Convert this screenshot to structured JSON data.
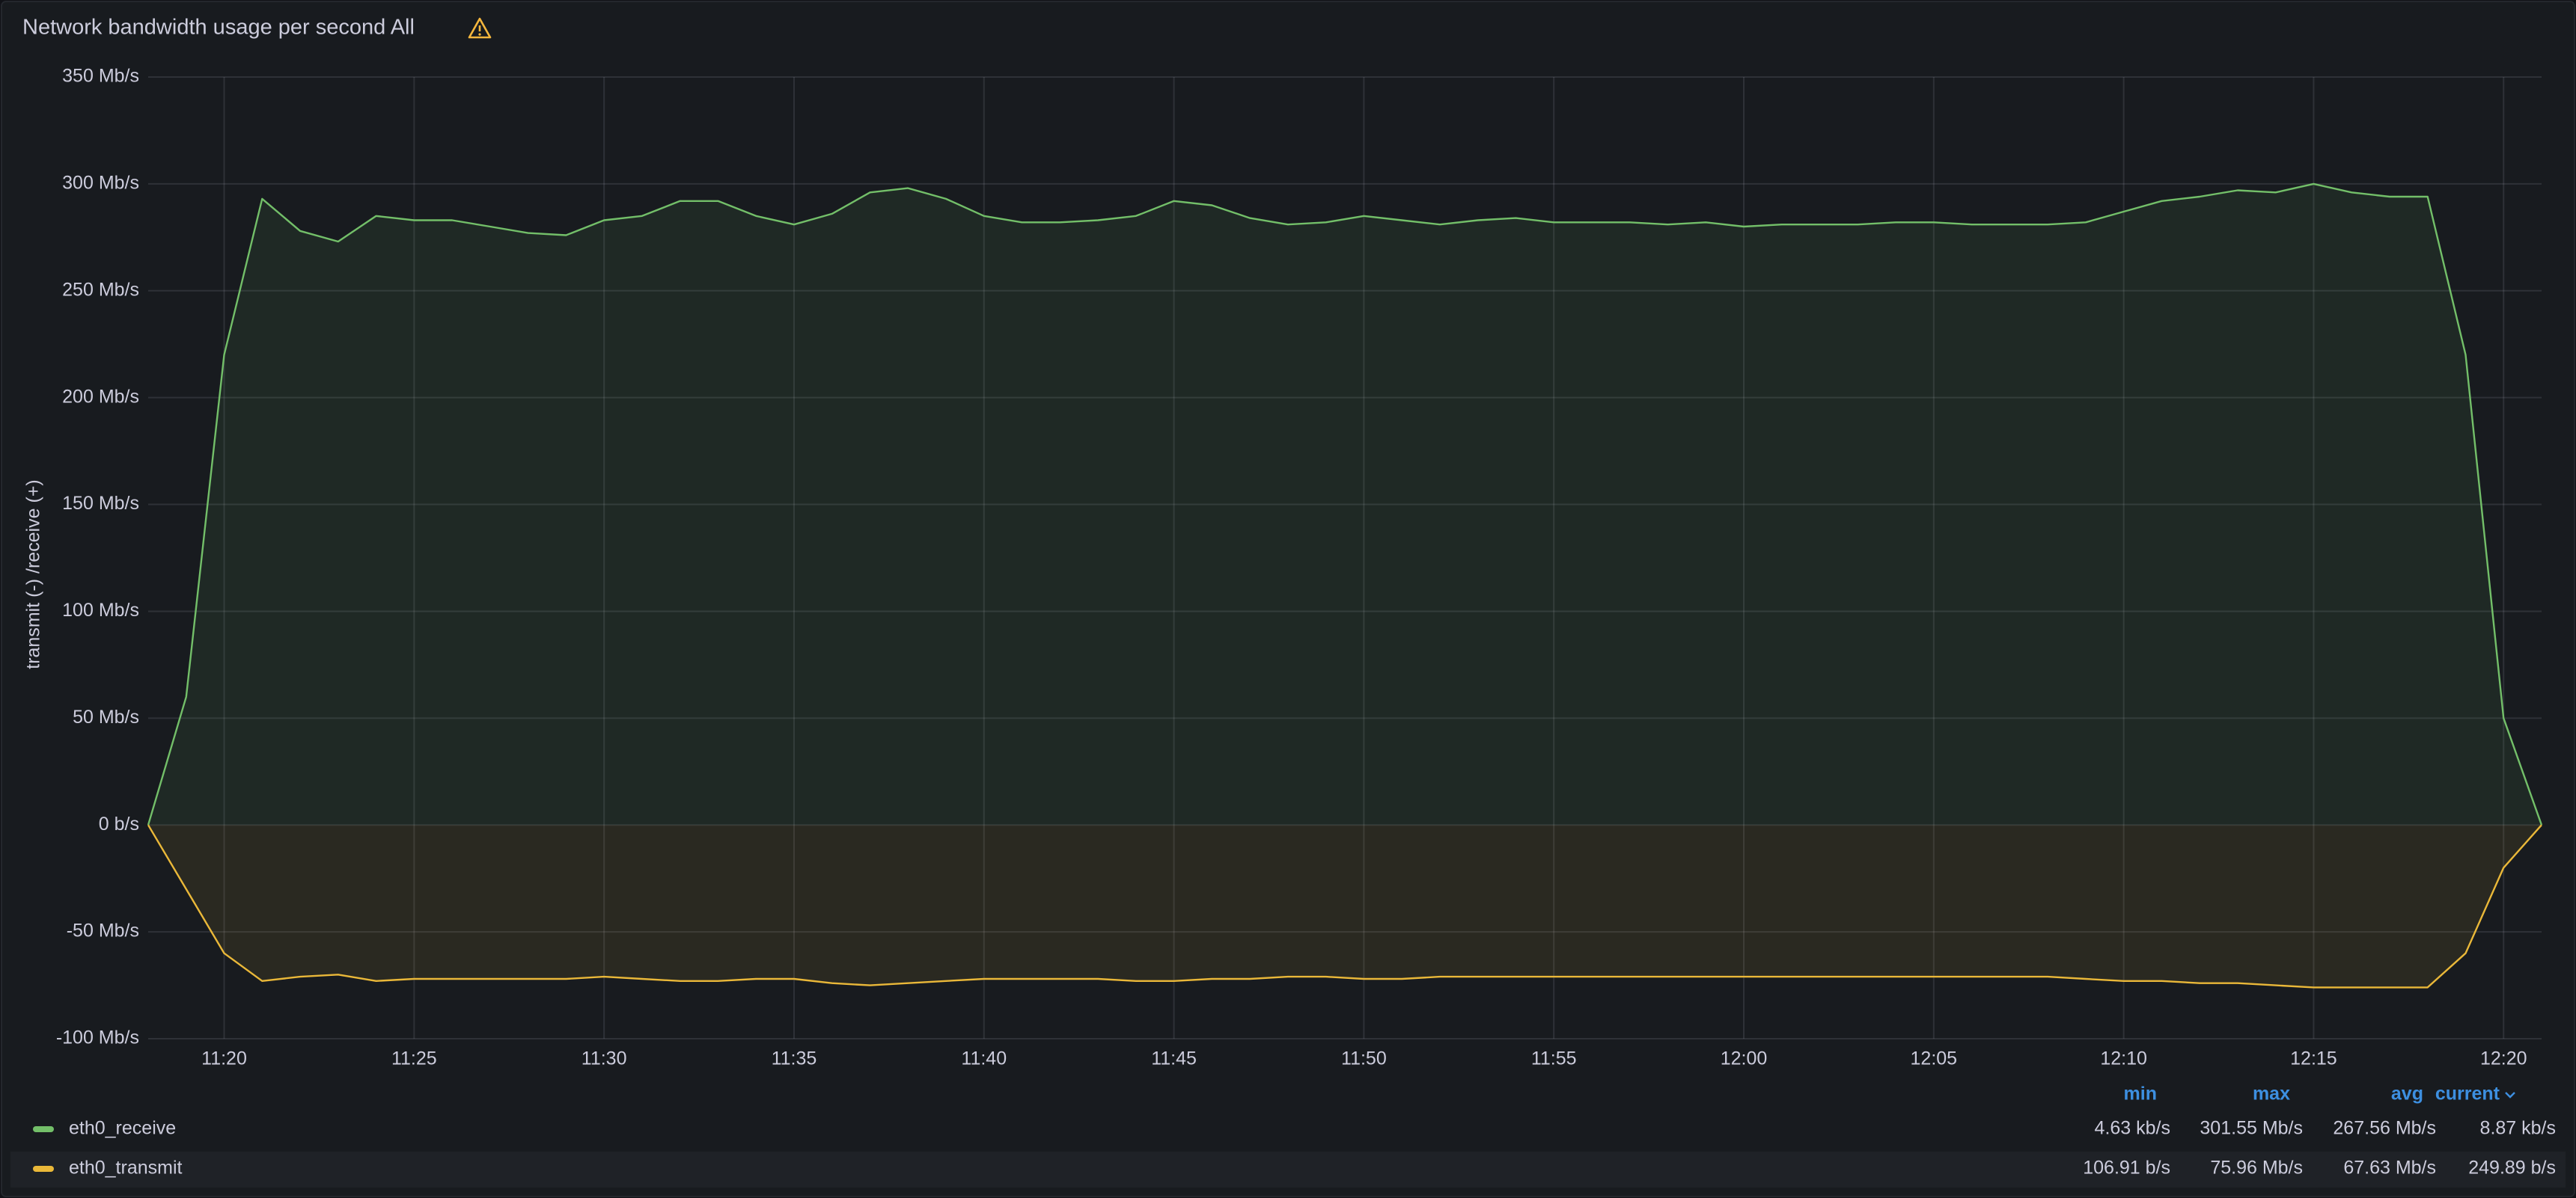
{
  "chart_data": {
    "type": "line",
    "title": "Network bandwidth usage per second All",
    "ylabel": "transmit  (-)  /receive  (+)",
    "ylim": [
      -100,
      350
    ],
    "yticks": [
      {
        "value": -100,
        "label": "-100 Mb/s"
      },
      {
        "value": -50,
        "label": "-50 Mb/s"
      },
      {
        "value": 0,
        "label": "0 b/s"
      },
      {
        "value": 50,
        "label": "50 Mb/s"
      },
      {
        "value": 100,
        "label": "100 Mb/s"
      },
      {
        "value": 150,
        "label": "150 Mb/s"
      },
      {
        "value": 200,
        "label": "200 Mb/s"
      },
      {
        "value": 250,
        "label": "250 Mb/s"
      },
      {
        "value": 300,
        "label": "300 Mb/s"
      },
      {
        "value": 350,
        "label": "350 Mb/s"
      }
    ],
    "xlim": [
      "11:18",
      "12:21"
    ],
    "xticks": [
      "11:20",
      "11:25",
      "11:30",
      "11:35",
      "11:40",
      "11:45",
      "11:50",
      "11:55",
      "12:00",
      "12:05",
      "12:10",
      "12:15",
      "12:20"
    ],
    "grid": true,
    "x": [
      "11:18",
      "11:19",
      "11:20",
      "11:21",
      "11:22",
      "11:23",
      "11:24",
      "11:25",
      "11:26",
      "11:27",
      "11:28",
      "11:29",
      "11:30",
      "11:31",
      "11:32",
      "11:33",
      "11:34",
      "11:35",
      "11:36",
      "11:37",
      "11:38",
      "11:39",
      "11:40",
      "11:41",
      "11:42",
      "11:43",
      "11:44",
      "11:45",
      "11:46",
      "11:47",
      "11:48",
      "11:49",
      "11:50",
      "11:51",
      "11:52",
      "11:53",
      "11:54",
      "11:55",
      "11:56",
      "11:57",
      "11:58",
      "11:59",
      "12:00",
      "12:01",
      "12:02",
      "12:03",
      "12:04",
      "12:05",
      "12:06",
      "12:07",
      "12:08",
      "12:09",
      "12:10",
      "12:11",
      "12:12",
      "12:13",
      "12:14",
      "12:15",
      "12:16",
      "12:17",
      "12:18",
      "12:19",
      "12:20",
      "12:21"
    ],
    "legend_columns": [
      "min",
      "max",
      "avg",
      "current"
    ],
    "series": [
      {
        "name": "eth0_receive",
        "color": "#73bf69",
        "values": [
          0,
          60,
          220,
          293,
          278,
          273,
          285,
          283,
          283,
          280,
          277,
          276,
          283,
          285,
          292,
          292,
          285,
          281,
          286,
          296,
          298,
          293,
          285,
          282,
          282,
          283,
          285,
          292,
          290,
          284,
          281,
          282,
          285,
          283,
          281,
          283,
          284,
          282,
          282,
          282,
          281,
          282,
          280,
          281,
          281,
          281,
          282,
          282,
          281,
          281,
          281,
          282,
          287,
          292,
          294,
          297,
          296,
          300,
          296,
          294,
          294,
          220,
          50,
          0
        ],
        "stats": [
          "4.63 kb/s",
          "301.55 Mb/s",
          "267.56 Mb/s",
          "8.87 kb/s"
        ]
      },
      {
        "name": "eth0_transmit",
        "color": "#eab839",
        "values": [
          0,
          -30,
          -60,
          -73,
          -71,
          -70,
          -73,
          -72,
          -72,
          -72,
          -72,
          -72,
          -71,
          -72,
          -73,
          -73,
          -72,
          -72,
          -74,
          -75,
          -74,
          -73,
          -72,
          -72,
          -72,
          -72,
          -73,
          -73,
          -72,
          -72,
          -71,
          -71,
          -72,
          -72,
          -71,
          -71,
          -71,
          -71,
          -71,
          -71,
          -71,
          -71,
          -71,
          -71,
          -71,
          -71,
          -71,
          -71,
          -71,
          -71,
          -71,
          -72,
          -73,
          -73,
          -74,
          -74,
          -75,
          -76,
          -76,
          -76,
          -76,
          -60,
          -20,
          0
        ],
        "stats": [
          "106.91 b/s",
          "75.96 Mb/s",
          "67.63 Mb/s",
          "249.89 b/s"
        ]
      }
    ]
  }
}
